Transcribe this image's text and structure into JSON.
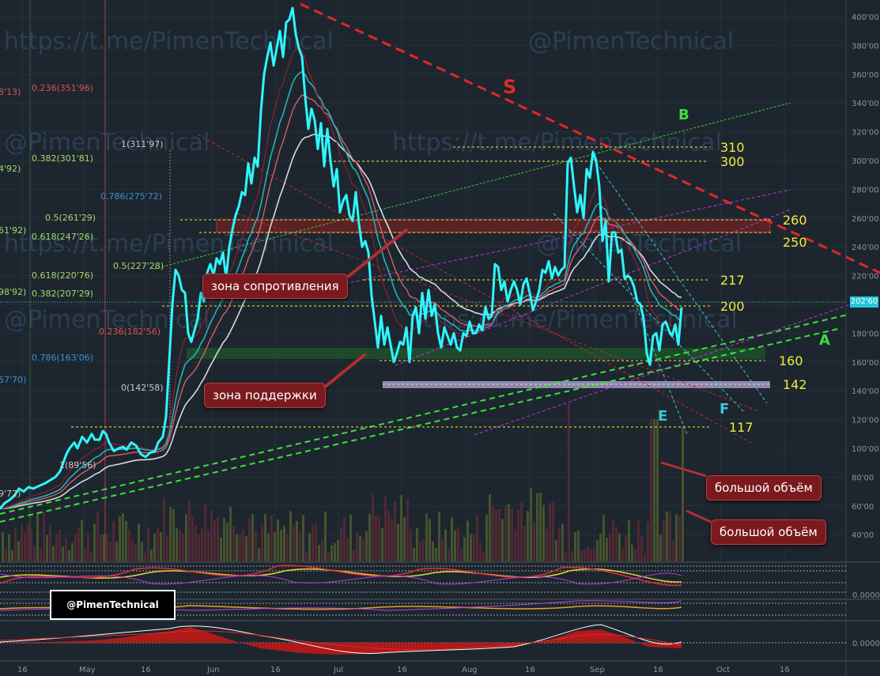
{
  "watermarks": [
    "https://t.me/PimenTechnical",
    "@PimenTechnical"
  ],
  "badge": "@PimenTechnical",
  "price_tag": "202'60",
  "notes": {
    "resistance": "зона сопротивления",
    "support": "зона поддержки",
    "volume1": "большой объём",
    "volume2": "большой объём"
  },
  "pattern_letters": {
    "S": "S",
    "B": "B",
    "A": "A",
    "E": "E",
    "F": "F"
  },
  "levels": [
    {
      "value": 310,
      "label": "310"
    },
    {
      "value": 300,
      "label": "300"
    },
    {
      "value": 260,
      "label": "260"
    },
    {
      "value": 250,
      "label": "250"
    },
    {
      "value": 217,
      "label": "217"
    },
    {
      "value": 200,
      "label": "200"
    },
    {
      "value": 160,
      "label": "160"
    },
    {
      "value": 142,
      "label": "142"
    },
    {
      "value": 117,
      "label": "117"
    }
  ],
  "fib_left": [
    {
      "label": "0.236(351'96)",
      "color": "#d9534f"
    },
    {
      "label": "1(311'97)",
      "color": "#c8c8c8"
    },
    {
      "label": "0.382(301'81)",
      "color": "#a6d86a"
    },
    {
      "label": "0.786(275'72)",
      "color": "#3a8fd0"
    },
    {
      "label": "0.5(261'29)",
      "color": "#a6d86a"
    },
    {
      "label": "0.618(247'26)",
      "color": "#a6d86a"
    },
    {
      "label": "0.5(227'28)",
      "color": "#a6d86a"
    },
    {
      "label": "0.618(220'76)",
      "color": "#a6d86a"
    },
    {
      "label": "0.382(207'29)",
      "color": "#a6d86a"
    },
    {
      "label": "0.236(182'56)",
      "color": "#d9534f"
    },
    {
      "label": "0.786(163'06)",
      "color": "#3a8fd0"
    },
    {
      "label": "0(142'58)",
      "color": "#c8c8c8"
    },
    {
      "label": "1(89'56)",
      "color": "#c8c8c8"
    }
  ],
  "fib_edge": [
    "8'13)",
    "4'92)",
    "61'92)",
    "98'92)",
    "67'70)",
    "9'72)"
  ],
  "y_axis_ticks": [
    "400'00",
    "380'00",
    "360'00",
    "340'00",
    "320'00",
    "300'00",
    "280'00",
    "260'00",
    "240'00",
    "220'00",
    "200'00",
    "180'00",
    "160'00",
    "140'00",
    "120'00",
    "100'00",
    "80'00",
    "60'00",
    "40'00"
  ],
  "x_axis_ticks": [
    "16",
    "May",
    "16",
    "Jun",
    "16",
    "Jul",
    "16",
    "Aug",
    "16",
    "Sep",
    "16",
    "Oct",
    "16"
  ],
  "indicator_ticks": [
    "0.0000",
    "0.0000"
  ],
  "chart_data": {
    "type": "line",
    "y_range": [
      30,
      410
    ],
    "price_series": [
      [
        0,
        58
      ],
      [
        6,
        62
      ],
      [
        12,
        64
      ],
      [
        18,
        67
      ],
      [
        24,
        72
      ],
      [
        30,
        70
      ],
      [
        36,
        73
      ],
      [
        42,
        72
      ],
      [
        50,
        74
      ],
      [
        58,
        76
      ],
      [
        64,
        78
      ],
      [
        70,
        80
      ],
      [
        76,
        84
      ],
      [
        80,
        90
      ],
      [
        84,
        96
      ],
      [
        88,
        100
      ],
      [
        94,
        104
      ],
      [
        98,
        100
      ],
      [
        104,
        108
      ],
      [
        110,
        104
      ],
      [
        116,
        110
      ],
      [
        120,
        106
      ],
      [
        126,
        106
      ],
      [
        130,
        112
      ],
      [
        134,
        110
      ],
      [
        138,
        104
      ],
      [
        144,
        98
      ],
      [
        150,
        100
      ],
      [
        156,
        101
      ],
      [
        160,
        99
      ],
      [
        166,
        104
      ],
      [
        172,
        102
      ],
      [
        178,
        96
      ],
      [
        184,
        94
      ],
      [
        190,
        97
      ],
      [
        196,
        98
      ],
      [
        200,
        104
      ],
      [
        206,
        108
      ],
      [
        210,
        122
      ],
      [
        214,
        160
      ],
      [
        218,
        200
      ],
      [
        222,
        224
      ],
      [
        226,
        220
      ],
      [
        230,
        210
      ],
      [
        234,
        208
      ],
      [
        238,
        180
      ],
      [
        242,
        174
      ],
      [
        246,
        182
      ],
      [
        250,
        190
      ],
      [
        254,
        208
      ],
      [
        258,
        202
      ],
      [
        262,
        222
      ],
      [
        266,
        228
      ],
      [
        270,
        220
      ],
      [
        274,
        232
      ],
      [
        278,
        228
      ],
      [
        282,
        236
      ],
      [
        286,
        218
      ],
      [
        290,
        240
      ],
      [
        294,
        252
      ],
      [
        298,
        262
      ],
      [
        302,
        268
      ],
      [
        306,
        278
      ],
      [
        310,
        276
      ],
      [
        314,
        298
      ],
      [
        318,
        284
      ],
      [
        322,
        302
      ],
      [
        326,
        296
      ],
      [
        330,
        334
      ],
      [
        334,
        360
      ],
      [
        338,
        372
      ],
      [
        342,
        382
      ],
      [
        346,
        366
      ],
      [
        350,
        378
      ],
      [
        354,
        390
      ],
      [
        358,
        372
      ],
      [
        362,
        396
      ],
      [
        366,
        398
      ],
      [
        370,
        406
      ],
      [
        374,
        388
      ],
      [
        378,
        378
      ],
      [
        382,
        372
      ],
      [
        386,
        344
      ],
      [
        390,
        322
      ],
      [
        394,
        336
      ],
      [
        398,
        328
      ],
      [
        402,
        308
      ],
      [
        406,
        326
      ],
      [
        410,
        296
      ],
      [
        414,
        322
      ],
      [
        418,
        300
      ],
      [
        422,
        282
      ],
      [
        426,
        294
      ],
      [
        430,
        264
      ],
      [
        434,
        272
      ],
      [
        438,
        276
      ],
      [
        442,
        262
      ],
      [
        446,
        258
      ],
      [
        450,
        278
      ],
      [
        454,
        256
      ],
      [
        458,
        240
      ],
      [
        462,
        244
      ],
      [
        466,
        236
      ],
      [
        470,
        206
      ],
      [
        474,
        188
      ],
      [
        478,
        170
      ],
      [
        482,
        192
      ],
      [
        486,
        172
      ],
      [
        490,
        184
      ],
      [
        494,
        172
      ],
      [
        498,
        160
      ],
      [
        502,
        166
      ],
      [
        506,
        174
      ],
      [
        510,
        172
      ],
      [
        514,
        184
      ],
      [
        518,
        160
      ],
      [
        522,
        192
      ],
      [
        526,
        198
      ],
      [
        530,
        180
      ],
      [
        534,
        208
      ],
      [
        538,
        190
      ],
      [
        542,
        210
      ],
      [
        546,
        192
      ],
      [
        550,
        200
      ],
      [
        554,
        180
      ],
      [
        558,
        170
      ],
      [
        562,
        184
      ],
      [
        566,
        178
      ],
      [
        570,
        172
      ],
      [
        574,
        180
      ],
      [
        578,
        170
      ],
      [
        582,
        168
      ],
      [
        586,
        180
      ],
      [
        590,
        178
      ],
      [
        594,
        188
      ],
      [
        598,
        180
      ],
      [
        602,
        180
      ],
      [
        606,
        186
      ],
      [
        610,
        182
      ],
      [
        614,
        198
      ],
      [
        618,
        190
      ],
      [
        622,
        192
      ],
      [
        626,
        228
      ],
      [
        630,
        226
      ],
      [
        634,
        210
      ],
      [
        638,
        216
      ],
      [
        642,
        202
      ],
      [
        646,
        210
      ],
      [
        650,
        216
      ],
      [
        654,
        210
      ],
      [
        658,
        200
      ],
      [
        662,
        214
      ],
      [
        666,
        218
      ],
      [
        670,
        208
      ],
      [
        674,
        196
      ],
      [
        678,
        202
      ],
      [
        682,
        210
      ],
      [
        686,
        224
      ],
      [
        690,
        222
      ],
      [
        694,
        230
      ],
      [
        698,
        218
      ],
      [
        702,
        226
      ],
      [
        706,
        220
      ],
      [
        710,
        224
      ],
      [
        714,
        226
      ],
      [
        718,
        298
      ],
      [
        722,
        302
      ],
      [
        726,
        282
      ],
      [
        730,
        264
      ],
      [
        734,
        276
      ],
      [
        738,
        260
      ],
      [
        742,
        294
      ],
      [
        746,
        288
      ],
      [
        750,
        306
      ],
      [
        754,
        300
      ],
      [
        758,
        282
      ],
      [
        762,
        244
      ],
      [
        766,
        258
      ],
      [
        770,
        216
      ],
      [
        774,
        250
      ],
      [
        778,
        250
      ],
      [
        782,
        236
      ],
      [
        786,
        238
      ],
      [
        790,
        218
      ],
      [
        794,
        220
      ],
      [
        798,
        218
      ],
      [
        802,
        212
      ],
      [
        806,
        202
      ],
      [
        810,
        200
      ],
      [
        814,
        190
      ],
      [
        818,
        166
      ],
      [
        822,
        158
      ],
      [
        826,
        178
      ],
      [
        830,
        180
      ],
      [
        834,
        168
      ],
      [
        838,
        186
      ],
      [
        842,
        188
      ],
      [
        846,
        182
      ],
      [
        850,
        178
      ],
      [
        854,
        186
      ],
      [
        858,
        172
      ],
      [
        862,
        198
      ]
    ],
    "levels": [
      310,
      300,
      260,
      250,
      217,
      200,
      160,
      142,
      117
    ],
    "fibonacci": [
      "0.236(351'96)",
      "1(311'97)",
      "0.382(301'81)",
      "0.786(275'72)",
      "0.5(261'29)",
      "0.618(247'26)",
      "0.5(227'28)",
      "0.618(220'76)",
      "0.382(207'29)",
      "0.236(182'56)",
      "0.786(163'06)",
      "0(142'58)",
      "1(89'56)"
    ],
    "grid": true,
    "legend": "none"
  }
}
